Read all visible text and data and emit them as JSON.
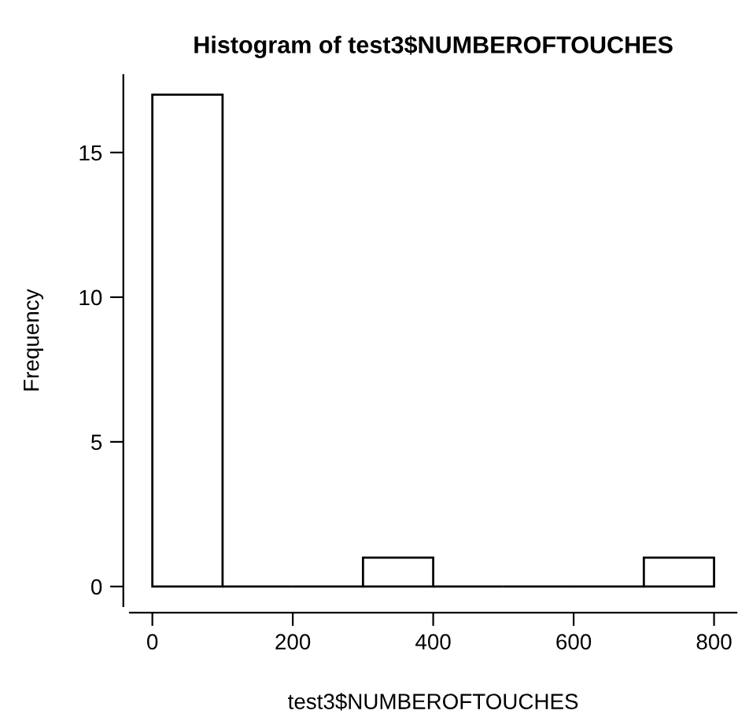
{
  "chart_data": {
    "type": "histogram",
    "title": "Histogram of test3$NUMBEROFTOUCHES",
    "xlabel": "test3$NUMBEROFTOUCHES",
    "ylabel": "Frequency",
    "bins": [
      0,
      100,
      200,
      300,
      400,
      500,
      600,
      700,
      800
    ],
    "values": [
      17,
      0,
      0,
      1,
      0,
      0,
      0,
      1
    ],
    "color": "#000000",
    "xlim": [
      -32,
      832
    ],
    "ylim": [
      -0.68,
      17.68
    ],
    "xticks": [
      0,
      200,
      400,
      600,
      800
    ],
    "yticks": [
      0,
      5,
      10,
      15
    ],
    "grid": false,
    "legend": false
  }
}
